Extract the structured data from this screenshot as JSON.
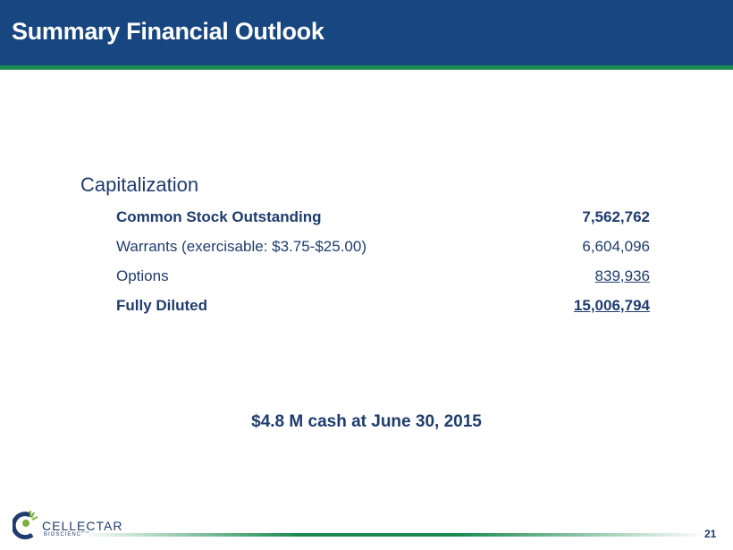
{
  "header": {
    "title": "Summary Financial Outlook"
  },
  "section": {
    "title": "Capitalization"
  },
  "rows": [
    {
      "label": "Common Stock Outstanding",
      "value": "7,562,762"
    },
    {
      "label": "Warrants (exercisable: $3.75-$25.00)",
      "value": "6,604,096"
    },
    {
      "label": "Options",
      "value": "839,936"
    },
    {
      "label": "Fully Diluted",
      "value": "15,006,794"
    }
  ],
  "cash": "$4.8 M cash at June 30, 2015",
  "footer": {
    "logo_name": "CELLECTAR",
    "logo_sub": "BIOSCIENCES",
    "page": "21"
  }
}
